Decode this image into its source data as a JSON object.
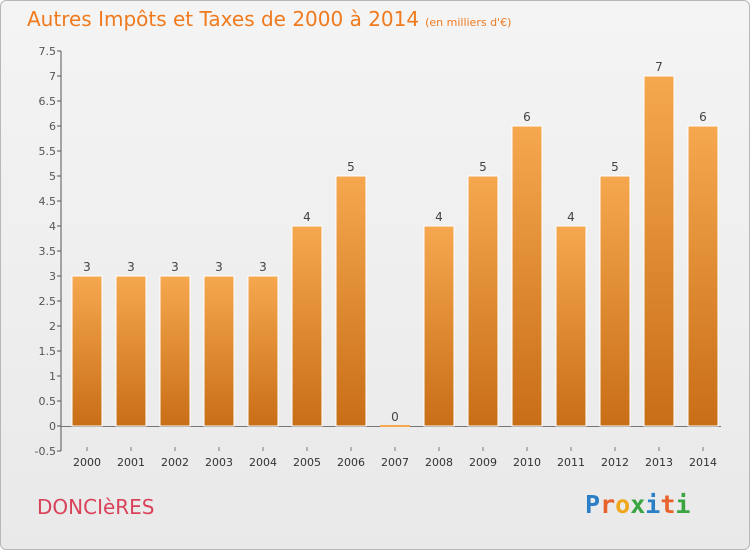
{
  "header": {
    "title": "Autres Impôts et Taxes de 2000 à 2014",
    "subtitle": "(en milliers d'€)"
  },
  "footer": {
    "place": "DONCIèRES",
    "logo": "Proxiti"
  },
  "colors": {
    "bar_top": "#f6a84e",
    "bar_bottom": "#c86e17",
    "title": "#f07a1e",
    "place": "#d9435a"
  },
  "chart_data": {
    "type": "bar",
    "title": "Autres Impôts et Taxes de 2000 à 2014",
    "categories": [
      "2000",
      "2001",
      "2002",
      "2003",
      "2004",
      "2005",
      "2006",
      "2007",
      "2008",
      "2009",
      "2010",
      "2011",
      "2012",
      "2013",
      "2014"
    ],
    "values": [
      3,
      3,
      3,
      3,
      3,
      4,
      5,
      0,
      4,
      5,
      6,
      4,
      5,
      7,
      6
    ],
    "data_labels": [
      "3",
      "3",
      "3",
      "3",
      "3",
      "4",
      "5",
      "0",
      "4",
      "5",
      "6",
      "4",
      "5",
      "7",
      "6"
    ],
    "ylim": [
      -0.5,
      7.5
    ],
    "yticks": [
      "-0.5",
      "0",
      "0.5",
      "1",
      "1.5",
      "2",
      "2.5",
      "3",
      "3.5",
      "4",
      "4.5",
      "5",
      "5.5",
      "6",
      "6.5",
      "7",
      "7.5"
    ],
    "grid": false,
    "legend": "none"
  }
}
